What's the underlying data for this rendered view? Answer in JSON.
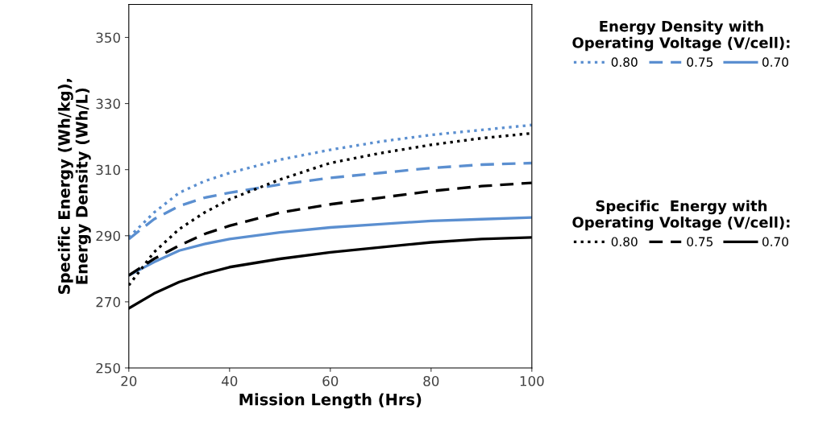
{
  "chart_data": {
    "type": "line",
    "xlabel": "Mission Length (Hrs)",
    "ylabel": "Specific Energy (Wh/kg),\nEnergy Density (Wh/L)",
    "legend_title": [
      "Energy Density with\nOperating Voltage (V/cell):",
      "Specific  Energy with\nOperating Voltage (V/cell):"
    ],
    "x": [
      20,
      25,
      30,
      35,
      40,
      50,
      60,
      70,
      80,
      90,
      100
    ],
    "xlim": [
      20,
      100
    ],
    "xticks": [
      20,
      40,
      60,
      80,
      100
    ],
    "ylim": [
      250,
      360
    ],
    "yticks": [
      250,
      270,
      290,
      310,
      330,
      350
    ],
    "grid": false,
    "legend": "right",
    "marker": "none",
    "series": [
      {
        "name": "0.80",
        "color": "#5b8fd0",
        "line_style": "dotted",
        "values": [
          289.5,
          297,
          303,
          306.5,
          309,
          313,
          316,
          318.5,
          320.5,
          322,
          323.5
        ]
      },
      {
        "name": "0.75",
        "color": "#5b8fd0",
        "line_style": "dashed",
        "values": [
          289,
          295,
          299,
          301.5,
          303,
          305.5,
          307.5,
          309,
          310.5,
          311.5,
          312
        ]
      },
      {
        "name": "0.70",
        "color": "#5b8fd0",
        "line_style": "solid",
        "values": [
          278,
          282,
          285.5,
          287.5,
          289,
          291,
          292.5,
          293.5,
          294.5,
          295,
          295.5
        ]
      },
      {
        "name": "0.80",
        "color": "#000000",
        "line_style": "dotted",
        "values": [
          275,
          285,
          292,
          297,
          301,
          307,
          312,
          315,
          317.5,
          319.5,
          321
        ]
      },
      {
        "name": "0.75",
        "color": "#000000",
        "line_style": "dashed",
        "values": [
          278,
          283,
          287,
          290.5,
          293,
          297,
          299.5,
          301.5,
          303.5,
          305,
          306
        ]
      },
      {
        "name": "0.70",
        "color": "#000000",
        "line_style": "solid",
        "values": [
          268,
          272.5,
          276,
          278.5,
          280.5,
          283,
          285,
          286.5,
          288,
          289,
          289.5
        ]
      }
    ]
  }
}
